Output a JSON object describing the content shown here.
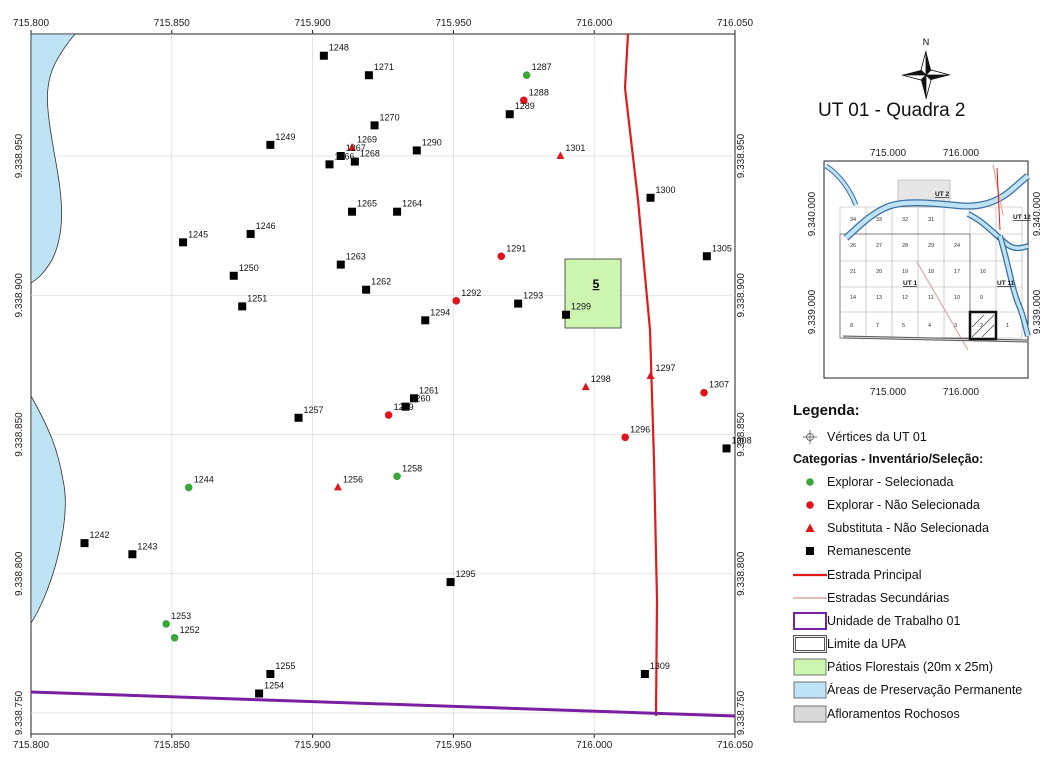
{
  "map_title": "UT 01 - Quadra 2",
  "north_label": "N",
  "map_frame": {
    "top_ticks": [
      "715.800",
      "715.850",
      "715.900",
      "715.950",
      "716.000",
      "716.050"
    ],
    "bottom_ticks": [
      "715.800",
      "715.850",
      "715.900",
      "715.950",
      "716.000",
      "716.050"
    ],
    "left_ticks": [
      "9.338.950",
      "9.338.900",
      "9.338.850",
      "9.338.800",
      "9.338.750"
    ],
    "right_ticks": [
      "9.338.950",
      "9.338.900",
      "9.338.850",
      "9.338.800",
      "9.338.750"
    ]
  },
  "patio_label": "5",
  "points": [
    {
      "id": "1248",
      "x": 715904,
      "y": 9338986,
      "cat": "remanescente"
    },
    {
      "id": "1271",
      "x": 715920,
      "y": 9338979,
      "cat": "remanescente"
    },
    {
      "id": "1287",
      "x": 715976,
      "y": 9338979,
      "cat": "explorar_sel"
    },
    {
      "id": "1288",
      "x": 715975,
      "y": 9338970,
      "cat": "explorar_nao"
    },
    {
      "id": "1289",
      "x": 715970,
      "y": 9338965,
      "cat": "remanescente"
    },
    {
      "id": "1270",
      "x": 715922,
      "y": 9338961,
      "cat": "remanescente"
    },
    {
      "id": "1249",
      "x": 715885,
      "y": 9338954,
      "cat": "remanescente"
    },
    {
      "id": "1269",
      "x": 715914,
      "y": 9338953,
      "cat": "substituta"
    },
    {
      "id": "1290",
      "x": 715937,
      "y": 9338952,
      "cat": "remanescente"
    },
    {
      "id": "1301",
      "x": 715988,
      "y": 9338950,
      "cat": "substituta"
    },
    {
      "id": "1267",
      "x": 715910,
      "y": 9338950,
      "cat": "remanescente"
    },
    {
      "id": "1268",
      "x": 715915,
      "y": 9338948,
      "cat": "remanescente"
    },
    {
      "id": "1266",
      "x": 715906,
      "y": 9338947,
      "cat": "remanescente"
    },
    {
      "id": "1300",
      "x": 716020,
      "y": 9338935,
      "cat": "remanescente"
    },
    {
      "id": "1265",
      "x": 715914,
      "y": 9338930,
      "cat": "remanescente"
    },
    {
      "id": "1264",
      "x": 715930,
      "y": 9338930,
      "cat": "remanescente"
    },
    {
      "id": "1246",
      "x": 715878,
      "y": 9338922,
      "cat": "remanescente"
    },
    {
      "id": "1245",
      "x": 715854,
      "y": 9338919,
      "cat": "remanescente"
    },
    {
      "id": "1291",
      "x": 715967,
      "y": 9338914,
      "cat": "explorar_nao"
    },
    {
      "id": "1305",
      "x": 716040,
      "y": 9338914,
      "cat": "remanescente"
    },
    {
      "id": "1263",
      "x": 715910,
      "y": 9338911,
      "cat": "remanescente"
    },
    {
      "id": "1250",
      "x": 715872,
      "y": 9338907,
      "cat": "remanescente"
    },
    {
      "id": "1262",
      "x": 715919,
      "y": 9338902,
      "cat": "remanescente"
    },
    {
      "id": "1292",
      "x": 715951,
      "y": 9338898,
      "cat": "explorar_nao"
    },
    {
      "id": "1293",
      "x": 715973,
      "y": 9338897,
      "cat": "remanescente"
    },
    {
      "id": "1251",
      "x": 715875,
      "y": 9338896,
      "cat": "remanescente"
    },
    {
      "id": "1299",
      "x": 715990,
      "y": 9338893,
      "cat": "remanescente"
    },
    {
      "id": "1294",
      "x": 715940,
      "y": 9338891,
      "cat": "remanescente"
    },
    {
      "id": "1297",
      "x": 716020,
      "y": 9338871,
      "cat": "substituta"
    },
    {
      "id": "1298",
      "x": 715997,
      "y": 9338867,
      "cat": "substituta"
    },
    {
      "id": "1307",
      "x": 716039,
      "y": 9338865,
      "cat": "explorar_nao"
    },
    {
      "id": "1261",
      "x": 715936,
      "y": 9338863,
      "cat": "remanescente"
    },
    {
      "id": "1260",
      "x": 715933,
      "y": 9338860,
      "cat": "remanescente"
    },
    {
      "id": "1259",
      "x": 715927,
      "y": 9338857,
      "cat": "explorar_nao"
    },
    {
      "id": "1257",
      "x": 715895,
      "y": 9338856,
      "cat": "remanescente"
    },
    {
      "id": "1296",
      "x": 716011,
      "y": 9338849,
      "cat": "explorar_nao"
    },
    {
      "id": "1308",
      "x": 716047,
      "y": 9338845,
      "cat": "remanescente"
    },
    {
      "id": "1258",
      "x": 715930,
      "y": 9338835,
      "cat": "explorar_sel"
    },
    {
      "id": "1244",
      "x": 715856,
      "y": 9338831,
      "cat": "explorar_sel"
    },
    {
      "id": "1256",
      "x": 715909,
      "y": 9338831,
      "cat": "substituta"
    },
    {
      "id": "1242",
      "x": 715819,
      "y": 9338811,
      "cat": "remanescente"
    },
    {
      "id": "1243",
      "x": 715836,
      "y": 9338807,
      "cat": "remanescente"
    },
    {
      "id": "1295",
      "x": 715949,
      "y": 9338797,
      "cat": "remanescente"
    },
    {
      "id": "1253",
      "x": 715848,
      "y": 9338782,
      "cat": "explorar_sel"
    },
    {
      "id": "1252",
      "x": 715851,
      "y": 9338777,
      "cat": "explorar_sel"
    },
    {
      "id": "1255",
      "x": 715885,
      "y": 9338764,
      "cat": "remanescente"
    },
    {
      "id": "1309",
      "x": 716018,
      "y": 9338764,
      "cat": "remanescente"
    },
    {
      "id": "1254",
      "x": 715881,
      "y": 9338757,
      "cat": "remanescente"
    }
  ],
  "inset": {
    "top_ticks": [
      "715.000",
      "716.000"
    ],
    "bottom_ticks": [
      "715.000",
      "716.000"
    ],
    "left_ticks": [
      "9.340.000",
      "9.339.000"
    ],
    "right_ticks": [
      "9.340.000",
      "9.339.000"
    ],
    "ut_labels": [
      "UT 2",
      "UT 1",
      "UT 11",
      "UT 12"
    ]
  },
  "legend": {
    "title": "Legenda:",
    "vertices_label": "Vértices da UT 01",
    "categories_title": "Categorias - Inventário/Seleção:",
    "items": [
      {
        "key": "explorar_sel",
        "label": "Explorar - Selecionada",
        "color": "#3aa63a"
      },
      {
        "key": "explorar_nao",
        "label": "Explorar - Não Selecionada",
        "color": "#e0141e"
      },
      {
        "key": "substituta",
        "label": "Substituta - Não Selecionada",
        "color": "#e0141e"
      },
      {
        "key": "remanescente",
        "label": "Remanescente",
        "color": "#000000"
      }
    ],
    "layers": [
      {
        "key": "estrada_principal",
        "label": "Estrada Principal",
        "color": "#e01b1b"
      },
      {
        "key": "estradas_secundarias",
        "label": "Estradas Secundárias",
        "color": "#d8a8a0"
      },
      {
        "key": "unidade_trabalho",
        "label": "Unidade de Trabalho 01",
        "color": "#7a1fa2"
      },
      {
        "key": "limite_upa",
        "label": "Limite da UPA",
        "color": "#555555"
      },
      {
        "key": "patios",
        "label": "Pátios Florestais (20m x 25m)",
        "color": "#ccf5b0"
      },
      {
        "key": "app",
        "label": "Áreas de Preservação Permanente",
        "color": "#bde3f5"
      },
      {
        "key": "afloramentos",
        "label": "Afloramentos Rochosos",
        "color": "#d9d9d9"
      }
    ]
  }
}
